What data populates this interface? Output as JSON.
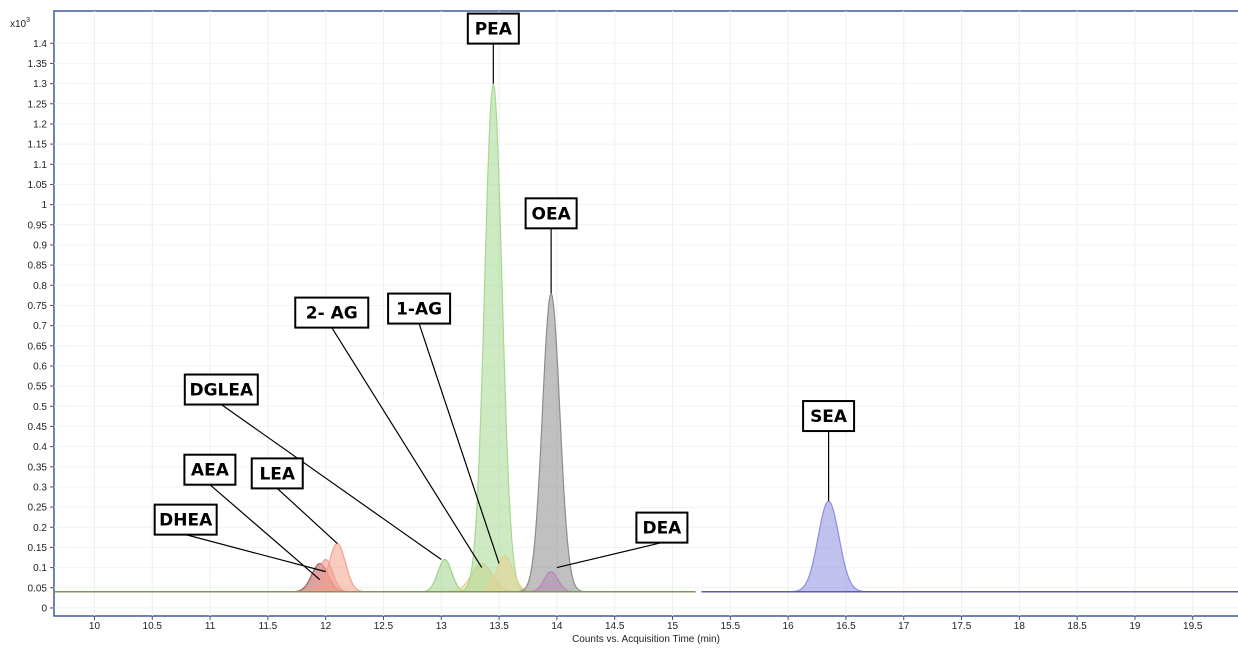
{
  "chart_data": {
    "type": "area",
    "title": "",
    "xlabel": "Counts vs. Acquisition Time (min)",
    "ylabel": "",
    "y_multiplier": "x10",
    "y_exponent": "3",
    "xlim": [
      9.65,
      19.9
    ],
    "ylim": [
      -0.02,
      1.48
    ],
    "grid": true,
    "legend": "none",
    "x_ticks": [
      10,
      10.5,
      11,
      11.5,
      12,
      12.5,
      13,
      13.5,
      14,
      14.5,
      15,
      15.5,
      16,
      16.5,
      17,
      17.5,
      18,
      18.5,
      19,
      19.5
    ],
    "x_tick_labels": [
      "10",
      "10.5",
      "11",
      "11.5",
      "12",
      "12.5",
      "13",
      "13.5",
      "14",
      "14.5",
      "15",
      "15.5",
      "16",
      "16.5",
      "17",
      "17.5",
      "18",
      "18.5",
      "19",
      "19.5"
    ],
    "y_ticks": [
      0,
      0.05,
      0.1,
      0.15,
      0.2,
      0.25,
      0.3,
      0.35,
      0.4,
      0.45,
      0.5,
      0.55,
      0.6,
      0.65,
      0.7,
      0.75,
      0.8,
      0.85,
      0.9,
      0.95,
      1,
      1.05,
      1.1,
      1.15,
      1.2,
      1.25,
      1.3,
      1.35,
      1.4
    ],
    "y_tick_labels": [
      "0",
      "0.05",
      "0.1",
      "0.15",
      "0.2",
      "0.25",
      "0.3",
      "0.35",
      "0.4",
      "0.45",
      "0.5",
      "0.55",
      "0.6",
      "0.65",
      "0.7",
      "0.75",
      "0.8",
      "0.85",
      "0.9",
      "0.95",
      "1",
      "1.05",
      "1.1",
      "1.15",
      "1.2",
      "1.25",
      "1.3",
      "1.35",
      "1.4"
    ],
    "baseline": 0.04,
    "segments": [
      {
        "x_start": 9.65,
        "x_end": 15.2
      },
      {
        "x_start": 15.25,
        "x_end": 19.9
      }
    ],
    "peaks": [
      {
        "name": "DHEA",
        "rt": 11.95,
        "height": 0.11,
        "width": 0.07,
        "color": "#b05a5a",
        "segment": 0
      },
      {
        "name": "AEA",
        "rt": 12.0,
        "height": 0.12,
        "width": 0.06,
        "color": "#f09a9a",
        "segment": 0
      },
      {
        "name": "LEA",
        "rt": 12.1,
        "height": 0.16,
        "width": 0.07,
        "color": "#f5a08a",
        "segment": 0
      },
      {
        "name": "DGLEA",
        "rt": 13.03,
        "height": 0.12,
        "width": 0.06,
        "color": "#9ed38a",
        "segment": 0
      },
      {
        "name": "2- AG",
        "rt": 13.35,
        "height": 0.11,
        "width": 0.09,
        "color": "#e8cf93",
        "segment": 0
      },
      {
        "name": "PEA",
        "rt": 13.45,
        "height": 1.3,
        "width": 0.075,
        "color": "#a6d88f",
        "segment": 0
      },
      {
        "name": "1-AG",
        "rt": 13.55,
        "height": 0.13,
        "width": 0.07,
        "color": "#e8cf93",
        "segment": 0
      },
      {
        "name": "OEA",
        "rt": 13.95,
        "height": 0.78,
        "width": 0.075,
        "color": "#8c8c8c",
        "segment": 0
      },
      {
        "name": "DEA",
        "rt": 13.95,
        "height": 0.09,
        "width": 0.06,
        "color": "#b488b4",
        "segment": 0
      },
      {
        "name": "SEA",
        "rt": 16.35,
        "height": 0.265,
        "width": 0.09,
        "color": "#8e8ee0",
        "segment": 1
      }
    ],
    "labels": [
      {
        "text": "PEA",
        "target_x": 13.45,
        "target_y": 1.3
      },
      {
        "text": "OEA",
        "target_x": 13.95,
        "target_y": 0.78
      },
      {
        "text": "2- AG",
        "target_x": 13.35,
        "target_y": 0.1
      },
      {
        "text": "1-AG",
        "target_x": 13.5,
        "target_y": 0.11
      },
      {
        "text": "DGLEA",
        "target_x": 13.0,
        "target_y": 0.12
      },
      {
        "text": "AEA",
        "target_x": 11.95,
        "target_y": 0.07
      },
      {
        "text": "LEA",
        "target_x": 12.1,
        "target_y": 0.16
      },
      {
        "text": "DHEA",
        "target_x": 12.0,
        "target_y": 0.09
      },
      {
        "text": "DEA",
        "target_x": 14.0,
        "target_y": 0.1
      },
      {
        "text": "SEA",
        "target_x": 16.35,
        "target_y": 0.265
      }
    ]
  }
}
